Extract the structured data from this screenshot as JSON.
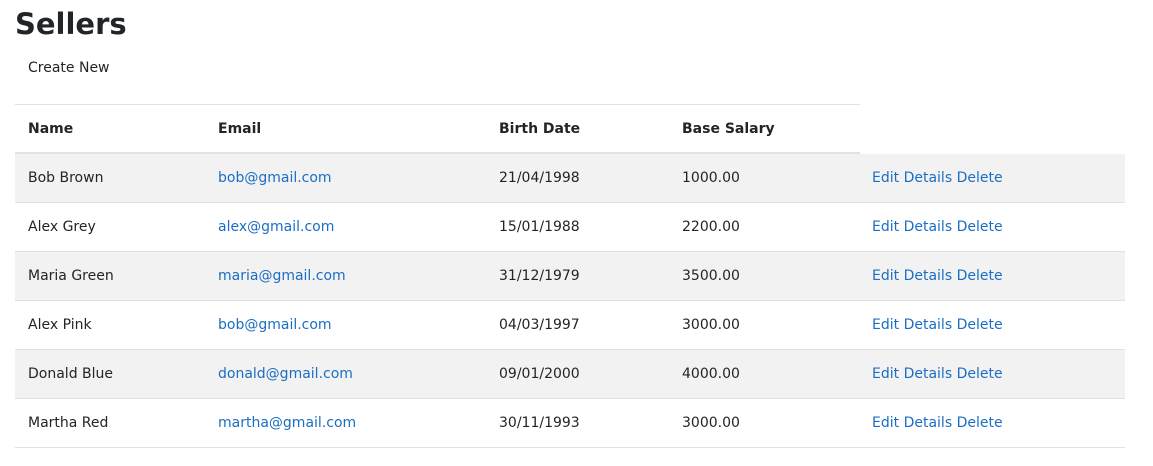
{
  "page": {
    "title": "Sellers",
    "create_new_label": "Create New"
  },
  "table": {
    "headers": {
      "name": "Name",
      "email": "Email",
      "birth_date": "Birth Date",
      "base_salary": "Base Salary"
    },
    "actions": {
      "edit": "Edit",
      "details": "Details",
      "delete": "Delete"
    },
    "rows": [
      {
        "name": "Bob Brown",
        "email": "bob@gmail.com",
        "birth_date": "21/04/1998",
        "base_salary": "1000.00"
      },
      {
        "name": "Alex Grey",
        "email": "alex@gmail.com",
        "birth_date": "15/01/1988",
        "base_salary": "2200.00"
      },
      {
        "name": "Maria Green",
        "email": "maria@gmail.com",
        "birth_date": "31/12/1979",
        "base_salary": "3500.00"
      },
      {
        "name": "Alex Pink",
        "email": "bob@gmail.com",
        "birth_date": "04/03/1997",
        "base_salary": "3000.00"
      },
      {
        "name": "Donald Blue",
        "email": "donald@gmail.com",
        "birth_date": "09/01/2000",
        "base_salary": "4000.00"
      },
      {
        "name": "Martha Red",
        "email": "martha@gmail.com",
        "birth_date": "30/11/1993",
        "base_salary": "3000.00"
      }
    ]
  },
  "colors": {
    "link": "#1b6ec2",
    "stripe": "#f2f2f2",
    "border": "#dee2e6",
    "text": "#212529"
  }
}
